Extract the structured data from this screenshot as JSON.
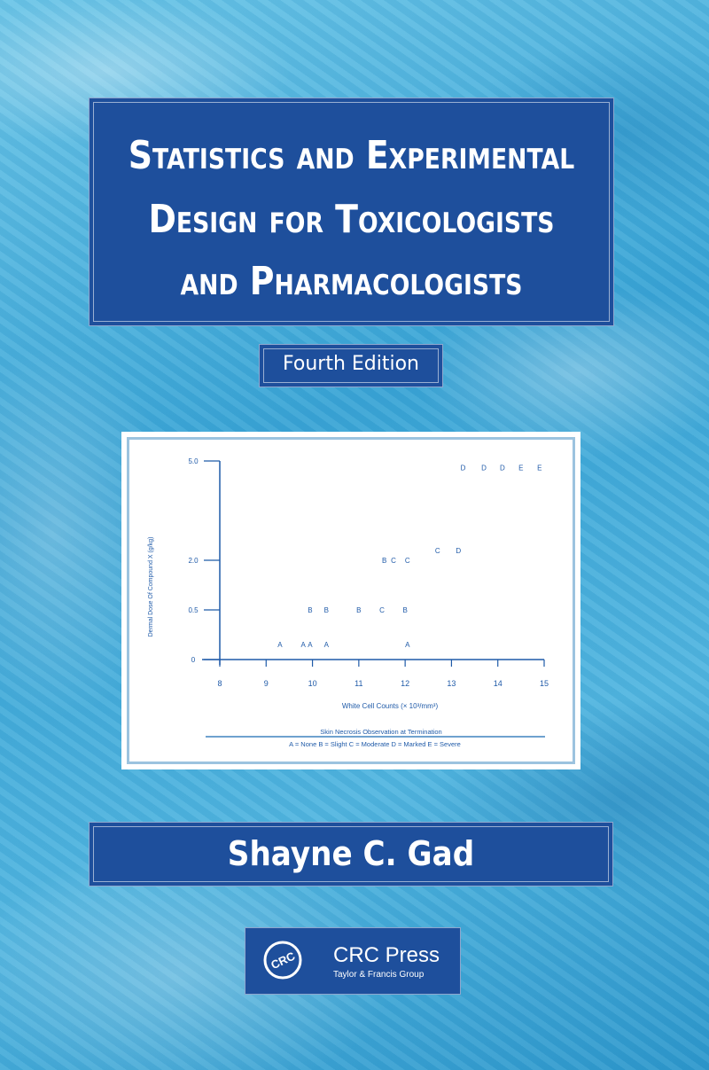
{
  "cover": {
    "title_lines": [
      "Statistics and Experimental",
      "Design for Toxicologists",
      "and Pharmacologists"
    ],
    "edition": "Fourth Edition",
    "author": "Shayne C. Gad",
    "publisher": {
      "logo_text": "CRC",
      "name": "CRC Press",
      "group": "Taylor & Francis Group"
    },
    "colors": {
      "box_blue": "#1e4f9c",
      "chart_ink": "#1f5aa8",
      "background": "#3aa5d6"
    }
  },
  "chart_data": {
    "type": "scatter",
    "xlabel": "White Cell Counts (× 10³/mm³)",
    "ylabel": "Dermal Dose Of Compound X (g/kg)",
    "xlim": [
      8,
      15
    ],
    "x_ticks": [
      "8",
      "9",
      "10",
      "11",
      "12",
      "13",
      "14",
      "15"
    ],
    "y_ticks": [
      "0",
      "0.5",
      "2.0",
      "5.0"
    ],
    "legend_title": "Skin Necrosis Observation at Termination",
    "legend_text": "A = None  B = Slight  C = Moderate  D = Marked  E = Severe",
    "points": [
      {
        "x": 9.3,
        "y": 0.15,
        "label": "A"
      },
      {
        "x": 9.8,
        "y": 0.15,
        "label": "A"
      },
      {
        "x": 9.95,
        "y": 0.15,
        "label": "A"
      },
      {
        "x": 10.3,
        "y": 0.15,
        "label": "A"
      },
      {
        "x": 12.05,
        "y": 0.15,
        "label": "A"
      },
      {
        "x": 9.95,
        "y": 0.5,
        "label": "B"
      },
      {
        "x": 10.3,
        "y": 0.5,
        "label": "B"
      },
      {
        "x": 11.0,
        "y": 0.5,
        "label": "B"
      },
      {
        "x": 11.5,
        "y": 0.5,
        "label": "C"
      },
      {
        "x": 12.0,
        "y": 0.5,
        "label": "B"
      },
      {
        "x": 11.55,
        "y": 2.0,
        "label": "B"
      },
      {
        "x": 11.75,
        "y": 2.0,
        "label": "C"
      },
      {
        "x": 12.05,
        "y": 2.0,
        "label": "C"
      },
      {
        "x": 12.7,
        "y": 2.3,
        "label": "C"
      },
      {
        "x": 13.15,
        "y": 2.3,
        "label": "D"
      },
      {
        "x": 13.25,
        "y": 4.8,
        "label": "D"
      },
      {
        "x": 13.7,
        "y": 4.8,
        "label": "D"
      },
      {
        "x": 14.1,
        "y": 4.8,
        "label": "D"
      },
      {
        "x": 14.5,
        "y": 4.8,
        "label": "E"
      },
      {
        "x": 14.9,
        "y": 4.8,
        "label": "E"
      }
    ]
  }
}
